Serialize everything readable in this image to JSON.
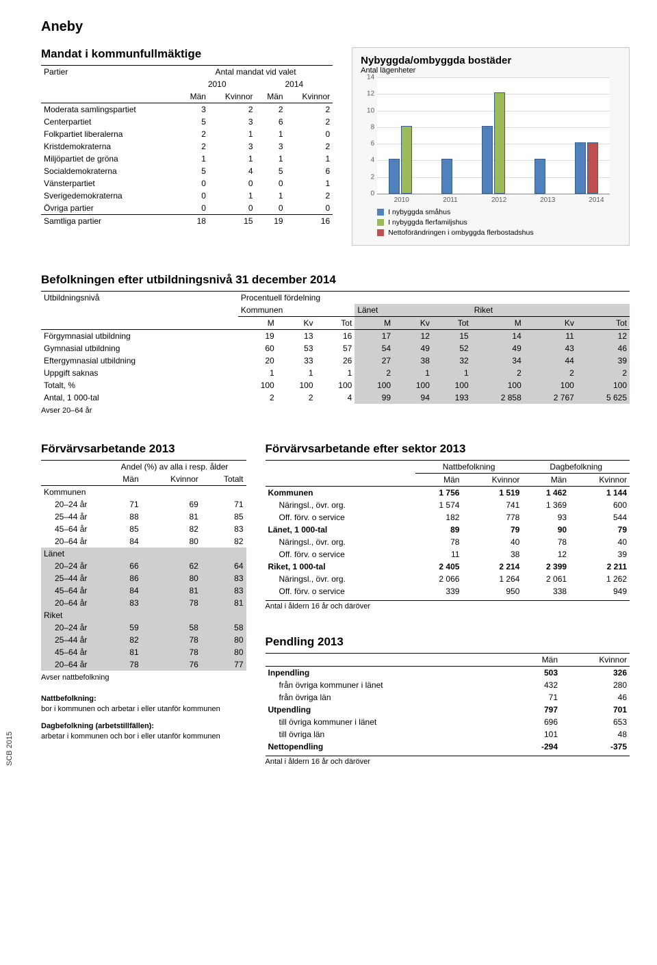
{
  "title": "Aneby",
  "mandat": {
    "title": "Mandat i kommunfullmäktige",
    "col_partier": "Partier",
    "col_antal": "Antal mandat vid valet",
    "years": [
      "2010",
      "2014"
    ],
    "genders": [
      "Män",
      "Kvinnor",
      "Män",
      "Kvinnor"
    ],
    "rows": [
      {
        "name": "Moderata samlingspartiet",
        "v": [
          3,
          2,
          2,
          2
        ]
      },
      {
        "name": "Centerpartiet",
        "v": [
          5,
          3,
          6,
          2
        ]
      },
      {
        "name": "Folkpartiet liberalerna",
        "v": [
          2,
          1,
          1,
          0
        ]
      },
      {
        "name": "Kristdemokraterna",
        "v": [
          2,
          3,
          3,
          2
        ]
      },
      {
        "name": "Miljöpartiet de gröna",
        "v": [
          1,
          1,
          1,
          1
        ]
      },
      {
        "name": "Socialdemokraterna",
        "v": [
          5,
          4,
          5,
          6
        ]
      },
      {
        "name": "Vänsterpartiet",
        "v": [
          0,
          0,
          0,
          1
        ]
      },
      {
        "name": "Sverigedemokraterna",
        "v": [
          0,
          1,
          1,
          2
        ]
      },
      {
        "name": "Övriga partier",
        "v": [
          0,
          0,
          0,
          0
        ]
      },
      {
        "name": "Samtliga partier",
        "v": [
          18,
          15,
          19,
          16
        ]
      }
    ]
  },
  "chart": {
    "title": "Nybyggda/ombyggda bostäder",
    "subtitle": "Antal lägenheter",
    "ymax": 14,
    "ytick_step": 2,
    "years": [
      "2010",
      "2011",
      "2012",
      "2013",
      "2014"
    ],
    "series": [
      {
        "label": "I nybyggda småhus",
        "color": "#4f81bd",
        "values": [
          4,
          4,
          8,
          4,
          6
        ]
      },
      {
        "label": "I nybyggda flerfamiljshus",
        "color": "#9bbb59",
        "values": [
          8,
          0,
          12,
          0,
          0
        ]
      },
      {
        "label": "Nettoförändringen i ombyggda flerbostadshus",
        "color": "#c0504d",
        "values": [
          0,
          0,
          0,
          0,
          6
        ]
      }
    ],
    "bg": "#ffffff",
    "grid": "#d9d9d9",
    "border": "#c8c8c8",
    "panel_bg": "#f7f7f7"
  },
  "utbildning": {
    "title": "Befolkningen efter utbildningsnivå 31 december 2014",
    "col_niva": "Utbildningsnivå",
    "col_procent": "Procentuell fördelning",
    "groups": [
      "Kommunen",
      "Länet",
      "Riket"
    ],
    "sub": [
      "M",
      "Kv",
      "Tot",
      "M",
      "Kv",
      "Tot",
      "M",
      "Kv",
      "Tot"
    ],
    "rows": [
      {
        "name": "Förgymnasial utbildning",
        "v": [
          "19",
          "13",
          "16",
          "17",
          "12",
          "15",
          "14",
          "11",
          "12"
        ]
      },
      {
        "name": "Gymnasial utbildning",
        "v": [
          "60",
          "53",
          "57",
          "54",
          "49",
          "52",
          "49",
          "43",
          "46"
        ]
      },
      {
        "name": "Eftergymnasial utbildning",
        "v": [
          "20",
          "33",
          "26",
          "27",
          "38",
          "32",
          "34",
          "44",
          "39"
        ]
      },
      {
        "name": "Uppgift saknas",
        "v": [
          "1",
          "1",
          "1",
          "2",
          "1",
          "1",
          "2",
          "2",
          "2"
        ]
      },
      {
        "name": "Totalt, %",
        "v": [
          "100",
          "100",
          "100",
          "100",
          "100",
          "100",
          "100",
          "100",
          "100"
        ]
      },
      {
        "name": "Antal, 1 000-tal",
        "v": [
          "2",
          "2",
          "4",
          "99",
          "94",
          "193",
          "2 858",
          "2 767",
          "5 625"
        ]
      }
    ],
    "foot": "Avser 20–64 år"
  },
  "forvarv": {
    "title": "Förvärvsarbetande 2013",
    "sub1": "Andel (%) av alla i resp. ålder",
    "cols": [
      "Män",
      "Kvinnor",
      "Totalt"
    ],
    "groups": [
      {
        "name": "Kommunen",
        "rows": [
          {
            "name": "20–24 år",
            "v": [
              71,
              69,
              71
            ]
          },
          {
            "name": "25–44 år",
            "v": [
              88,
              81,
              85
            ]
          },
          {
            "name": "45–64 år",
            "v": [
              85,
              82,
              83
            ]
          },
          {
            "name": "20–64 år",
            "v": [
              84,
              80,
              82
            ]
          }
        ]
      },
      {
        "name": "Länet",
        "rows": [
          {
            "name": "20–24 år",
            "v": [
              66,
              62,
              64
            ]
          },
          {
            "name": "25–44 år",
            "v": [
              86,
              80,
              83
            ]
          },
          {
            "name": "45–64 år",
            "v": [
              84,
              81,
              83
            ]
          },
          {
            "name": "20–64 år",
            "v": [
              83,
              78,
              81
            ]
          }
        ]
      },
      {
        "name": "Riket",
        "rows": [
          {
            "name": "20–24 år",
            "v": [
              59,
              58,
              58
            ]
          },
          {
            "name": "25–44 år",
            "v": [
              82,
              78,
              80
            ]
          },
          {
            "name": "45–64 år",
            "v": [
              81,
              78,
              80
            ]
          },
          {
            "name": "20–64 år",
            "v": [
              78,
              76,
              77
            ]
          }
        ]
      }
    ],
    "foot": "Avser nattbefolkning",
    "def1_h": "Nattbefolkning:",
    "def1_t": "bor i kommunen och arbetar i eller utanför kommunen",
    "def2_h": "Dagbefolkning (arbetstillfällen):",
    "def2_t": "arbetar i kommunen och bor i eller utanför kommunen"
  },
  "sektor": {
    "title": "Förvärvsarbetande efter sektor 2013",
    "h1": "Nattbefolkning",
    "h2": "Dagbefolkning",
    "sub": [
      "Män",
      "Kvinnor",
      "Män",
      "Kvinnor"
    ],
    "rows": [
      {
        "name": "Kommunen",
        "bold": true,
        "v": [
          "1 756",
          "1 519",
          "1 462",
          "1 144"
        ]
      },
      {
        "name": "Näringsl., övr. org.",
        "indent": true,
        "v": [
          "1 574",
          "741",
          "1 369",
          "600"
        ]
      },
      {
        "name": "Off. förv. o service",
        "indent": true,
        "v": [
          "182",
          "778",
          "93",
          "544"
        ]
      },
      {
        "name": "Länet, 1 000-tal",
        "bold": true,
        "v": [
          "89",
          "79",
          "90",
          "79"
        ]
      },
      {
        "name": "Näringsl., övr. org.",
        "indent": true,
        "v": [
          "78",
          "40",
          "78",
          "40"
        ]
      },
      {
        "name": "Off. förv. o service",
        "indent": true,
        "v": [
          "11",
          "38",
          "12",
          "39"
        ]
      },
      {
        "name": "Riket, 1 000-tal",
        "bold": true,
        "v": [
          "2 405",
          "2 214",
          "2 399",
          "2 211"
        ]
      },
      {
        "name": "Näringsl., övr. org.",
        "indent": true,
        "v": [
          "2 066",
          "1 264",
          "2 061",
          "1 262"
        ]
      },
      {
        "name": "Off. förv. o service",
        "indent": true,
        "v": [
          "339",
          "950",
          "338",
          "949"
        ]
      }
    ],
    "foot": "Antal i åldern 16 år och däröver"
  },
  "pendling": {
    "title": "Pendling 2013",
    "cols": [
      "Män",
      "Kvinnor"
    ],
    "rows": [
      {
        "name": "Inpendling",
        "bold": true,
        "v": [
          "503",
          "326"
        ]
      },
      {
        "name": "från övriga kommuner i länet",
        "indent": true,
        "v": [
          "432",
          "280"
        ]
      },
      {
        "name": "från övriga län",
        "indent": true,
        "v": [
          "71",
          "46"
        ]
      },
      {
        "name": "Utpendling",
        "bold": true,
        "v": [
          "797",
          "701"
        ]
      },
      {
        "name": "till övriga kommuner i länet",
        "indent": true,
        "v": [
          "696",
          "653"
        ]
      },
      {
        "name": "till övriga län",
        "indent": true,
        "v": [
          "101",
          "48"
        ]
      },
      {
        "name": "Nettopendling",
        "bold": true,
        "v": [
          "-294",
          "-375"
        ]
      }
    ],
    "foot": "Antal i åldern 16 år och däröver"
  },
  "side": "SCB 2015"
}
